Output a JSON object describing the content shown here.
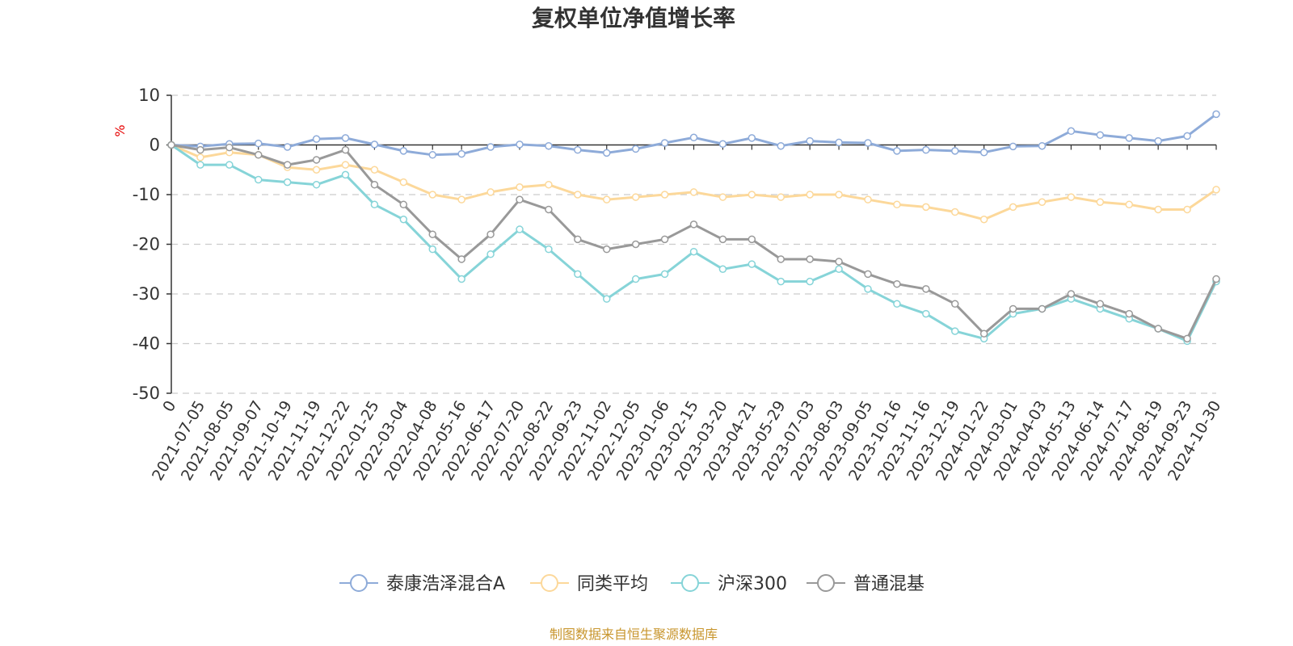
{
  "source_note": "制图数据来自恒生聚源数据库",
  "chart_data": {
    "type": "line",
    "title": "复权单位净值增长率",
    "ylabel": "%",
    "ylim": [
      -50,
      10
    ],
    "yticks": [
      10,
      0,
      -10,
      -20,
      -30,
      -40,
      -50
    ],
    "grid": true,
    "legend_position": "bottom-center",
    "categories": [
      "0",
      "2021-07-05",
      "2021-08-05",
      "2021-09-07",
      "2021-10-19",
      "2021-11-19",
      "2021-12-22",
      "2022-01-25",
      "2022-03-04",
      "2022-04-08",
      "2022-05-16",
      "2022-06-17",
      "2022-07-20",
      "2022-08-22",
      "2022-09-23",
      "2022-11-02",
      "2022-12-05",
      "2023-01-06",
      "2023-02-15",
      "2023-03-20",
      "2023-04-21",
      "2023-05-29",
      "2023-07-03",
      "2023-08-03",
      "2023-09-05",
      "2023-10-16",
      "2023-11-16",
      "2023-12-19",
      "2024-01-22",
      "2024-03-01",
      "2024-04-03",
      "2024-05-13",
      "2024-06-14",
      "2024-07-17",
      "2024-08-19",
      "2024-09-23",
      "2024-10-30"
    ],
    "series": [
      {
        "name": "泰康浩泽混合A",
        "color": "#8eabd9",
        "values": [
          0,
          -0.3,
          0.2,
          0.3,
          -0.4,
          1.2,
          1.4,
          0.1,
          -1.2,
          -2,
          -1.8,
          -0.4,
          0.1,
          -0.2,
          -1,
          -1.6,
          -0.8,
          0.4,
          1.5,
          0.2,
          1.4,
          -0.2,
          0.8,
          0.5,
          0.4,
          -1.2,
          -1,
          -1.2,
          -1.5,
          -0.3,
          -0.2,
          2.8,
          2,
          1.4,
          0.8,
          1.8,
          6.2
        ]
      },
      {
        "name": "同类平均",
        "color": "#fcd89a",
        "values": [
          0,
          -2.5,
          -1.5,
          -2,
          -4.5,
          -5,
          -4,
          -5,
          -7.5,
          -10,
          -11,
          -9.5,
          -8.5,
          -8,
          -10,
          -11,
          -10.5,
          -10,
          -9.5,
          -10.5,
          -10,
          -10.5,
          -10,
          -10,
          -11,
          -12,
          -12.5,
          -13.5,
          -15,
          -12.5,
          -11.5,
          -10.5,
          -11.5,
          -12,
          -13,
          -13,
          -9
        ]
      },
      {
        "name": "沪深300",
        "color": "#86d4d8",
        "values": [
          0,
          -4,
          -4,
          -7,
          -7.5,
          -8,
          -6,
          -12,
          -15,
          -21,
          -27,
          -22,
          -17,
          -21,
          -26,
          -31,
          -27,
          -26,
          -21.5,
          -25,
          -24,
          -27.5,
          -27.5,
          -25,
          -29,
          -32,
          -34,
          -37.5,
          -39,
          -34,
          -33,
          -31,
          -33,
          -35,
          -37,
          -39.5,
          -27.5
        ]
      },
      {
        "name": "普通混基",
        "color": "#999999",
        "values": [
          0,
          -1,
          -0.5,
          -2,
          -4,
          -3,
          -1,
          -8,
          -12,
          -18,
          -23,
          -18,
          -11,
          -13,
          -19,
          -21,
          -20,
          -19,
          -16,
          -19,
          -19,
          -23,
          -23,
          -23.5,
          -26,
          -28,
          -29,
          -32,
          -38,
          -33,
          -33,
          -30,
          -32,
          -34,
          -37,
          -39,
          -27
        ]
      }
    ]
  }
}
